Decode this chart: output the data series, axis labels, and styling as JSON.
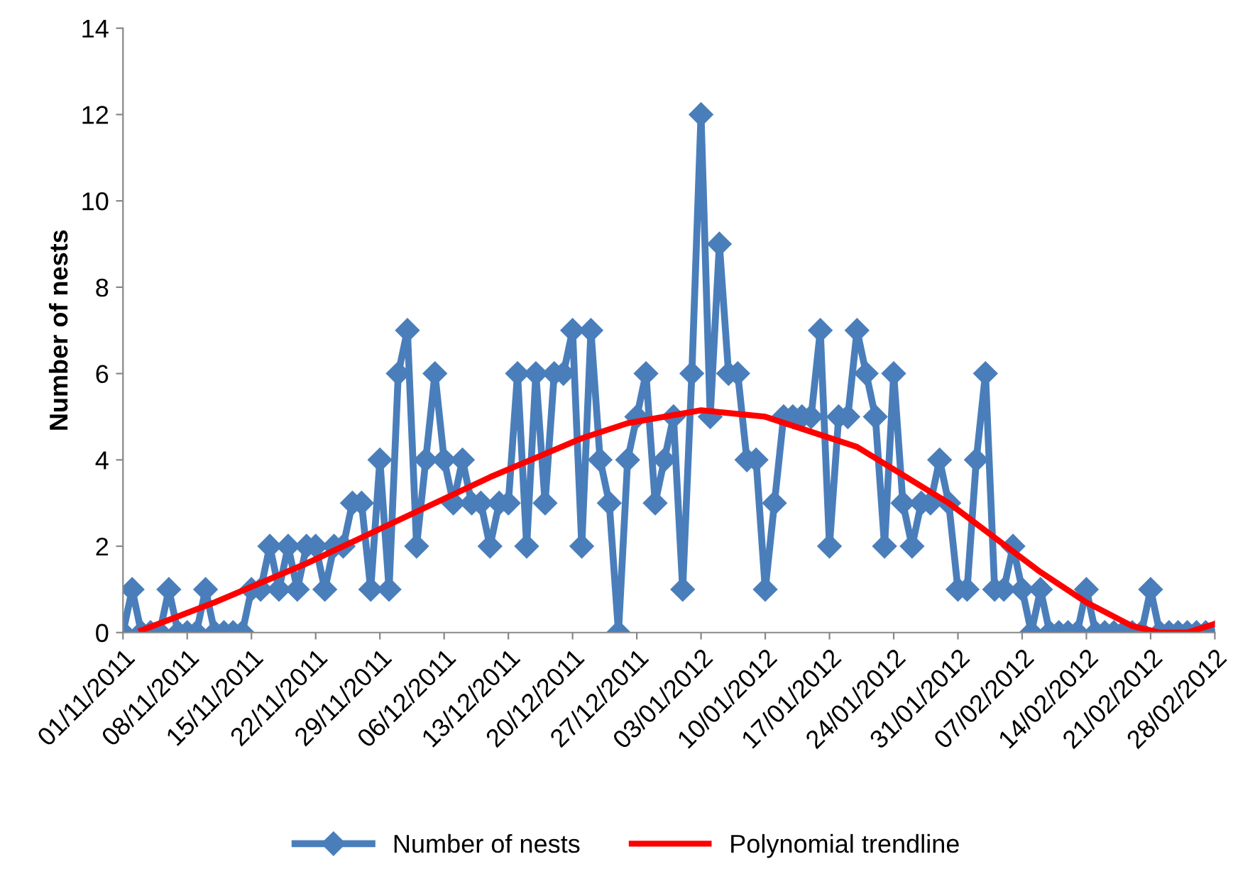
{
  "chart_data": {
    "type": "line",
    "ylabel": "Number of nests",
    "ylim": [
      0,
      14
    ],
    "yticks": [
      0,
      2,
      4,
      6,
      8,
      10,
      12,
      14
    ],
    "xlim": [
      "2011-11-01",
      "2012-02-28"
    ],
    "xticks": [
      {
        "value": "2011-11-01",
        "label": "01/11/2011"
      },
      {
        "value": "2011-11-08",
        "label": "08/11/2011"
      },
      {
        "value": "2011-11-15",
        "label": "15/11/2011"
      },
      {
        "value": "2011-11-22",
        "label": "22/11/2011"
      },
      {
        "value": "2011-11-29",
        "label": "29/11/2011"
      },
      {
        "value": "2011-12-06",
        "label": "06/12/2011"
      },
      {
        "value": "2011-12-13",
        "label": "13/12/2011"
      },
      {
        "value": "2011-12-20",
        "label": "20/12/2011"
      },
      {
        "value": "2011-12-27",
        "label": "27/12/2011"
      },
      {
        "value": "2012-01-03",
        "label": "03/01/2012"
      },
      {
        "value": "2012-01-10",
        "label": "10/01/2012"
      },
      {
        "value": "2012-01-17",
        "label": "17/01/2012"
      },
      {
        "value": "2012-01-24",
        "label": "24/01/2012"
      },
      {
        "value": "2012-01-31",
        "label": "31/01/2012"
      },
      {
        "value": "2012-02-07",
        "label": "07/02/2012"
      },
      {
        "value": "2012-02-14",
        "label": "14/02/2012"
      },
      {
        "value": "2012-02-21",
        "label": "21/02/2012"
      },
      {
        "value": "2012-02-28",
        "label": "28/02/2012"
      }
    ],
    "legend": "bottom",
    "grid": false,
    "series": [
      {
        "name": "Number of nests",
        "color": "#4a7ebb",
        "marker": "diamond",
        "x": [
          "2011-11-01",
          "2011-11-02",
          "2011-11-03",
          "2011-11-04",
          "2011-11-05",
          "2011-11-06",
          "2011-11-07",
          "2011-11-08",
          "2011-11-09",
          "2011-11-10",
          "2011-11-11",
          "2011-11-12",
          "2011-11-13",
          "2011-11-14",
          "2011-11-15",
          "2011-11-16",
          "2011-11-17",
          "2011-11-18",
          "2011-11-19",
          "2011-11-20",
          "2011-11-21",
          "2011-11-22",
          "2011-11-23",
          "2011-11-24",
          "2011-11-25",
          "2011-11-26",
          "2011-11-27",
          "2011-11-28",
          "2011-11-29",
          "2011-11-30",
          "2011-12-01",
          "2011-12-02",
          "2011-12-03",
          "2011-12-04",
          "2011-12-05",
          "2011-12-06",
          "2011-12-07",
          "2011-12-08",
          "2011-12-09",
          "2011-12-10",
          "2011-12-11",
          "2011-12-12",
          "2011-12-13",
          "2011-12-14",
          "2011-12-15",
          "2011-12-16",
          "2011-12-17",
          "2011-12-18",
          "2011-12-19",
          "2011-12-20",
          "2011-12-21",
          "2011-12-22",
          "2011-12-23",
          "2011-12-24",
          "2011-12-25",
          "2011-12-26",
          "2011-12-27",
          "2011-12-28",
          "2011-12-29",
          "2011-12-30",
          "2011-12-31",
          "2012-01-01",
          "2012-01-02",
          "2012-01-03",
          "2012-01-04",
          "2012-01-05",
          "2012-01-06",
          "2012-01-07",
          "2012-01-08",
          "2012-01-09",
          "2012-01-10",
          "2012-01-11",
          "2012-01-12",
          "2012-01-13",
          "2012-01-14",
          "2012-01-15",
          "2012-01-16",
          "2012-01-17",
          "2012-01-18",
          "2012-01-19",
          "2012-01-20",
          "2012-01-21",
          "2012-01-22",
          "2012-01-23",
          "2012-01-24",
          "2012-01-25",
          "2012-01-26",
          "2012-01-27",
          "2012-01-28",
          "2012-01-29",
          "2012-01-30",
          "2012-01-31",
          "2012-02-01",
          "2012-02-02",
          "2012-02-03",
          "2012-02-04",
          "2012-02-05",
          "2012-02-06",
          "2012-02-07",
          "2012-02-08",
          "2012-02-09",
          "2012-02-10",
          "2012-02-11",
          "2012-02-12",
          "2012-02-13",
          "2012-02-14",
          "2012-02-15",
          "2012-02-16",
          "2012-02-17",
          "2012-02-18",
          "2012-02-19",
          "2012-02-20",
          "2012-02-21",
          "2012-02-22",
          "2012-02-23",
          "2012-02-24",
          "2012-02-25",
          "2012-02-26",
          "2012-02-27",
          "2012-02-28"
        ],
        "values": [
          0,
          1,
          0,
          0,
          0,
          1,
          0,
          0,
          0,
          1,
          0,
          0,
          0,
          0,
          1,
          1,
          2,
          1,
          2,
          1,
          2,
          2,
          1,
          2,
          2,
          3,
          3,
          1,
          4,
          1,
          6,
          7,
          2,
          4,
          6,
          4,
          3,
          4,
          3,
          3,
          2,
          3,
          3,
          6,
          2,
          6,
          3,
          6,
          6,
          7,
          2,
          7,
          4,
          3,
          0,
          4,
          5,
          6,
          3,
          4,
          5,
          1,
          6,
          12,
          5,
          9,
          6,
          6,
          4,
          4,
          1,
          3,
          5,
          5,
          5,
          5,
          7,
          2,
          5,
          5,
          7,
          6,
          5,
          2,
          6,
          3,
          2,
          3,
          3,
          4,
          3,
          1,
          1,
          4,
          6,
          1,
          1,
          2,
          1,
          0,
          1,
          0,
          0,
          0,
          0,
          1,
          0,
          0,
          0,
          0,
          0,
          0,
          1,
          0,
          0,
          0,
          0,
          0,
          0,
          0
        ]
      },
      {
        "name": "Polynomial trendline",
        "color": "#ff0000",
        "marker": "none",
        "x": [
          "2011-11-03",
          "2011-11-11",
          "2011-11-21",
          "2011-12-01",
          "2011-12-11",
          "2011-12-21",
          "2011-12-26",
          "2012-01-03",
          "2012-01-10",
          "2012-01-20",
          "2012-01-30",
          "2012-02-09",
          "2012-02-14",
          "2012-02-19",
          "2012-02-22",
          "2012-02-25",
          "2012-02-28"
        ],
        "values": [
          0.05,
          0.7,
          1.6,
          2.6,
          3.6,
          4.5,
          4.85,
          5.15,
          5.0,
          4.3,
          3.0,
          1.4,
          0.7,
          0.15,
          0.0,
          0.0,
          0.2
        ]
      }
    ]
  }
}
